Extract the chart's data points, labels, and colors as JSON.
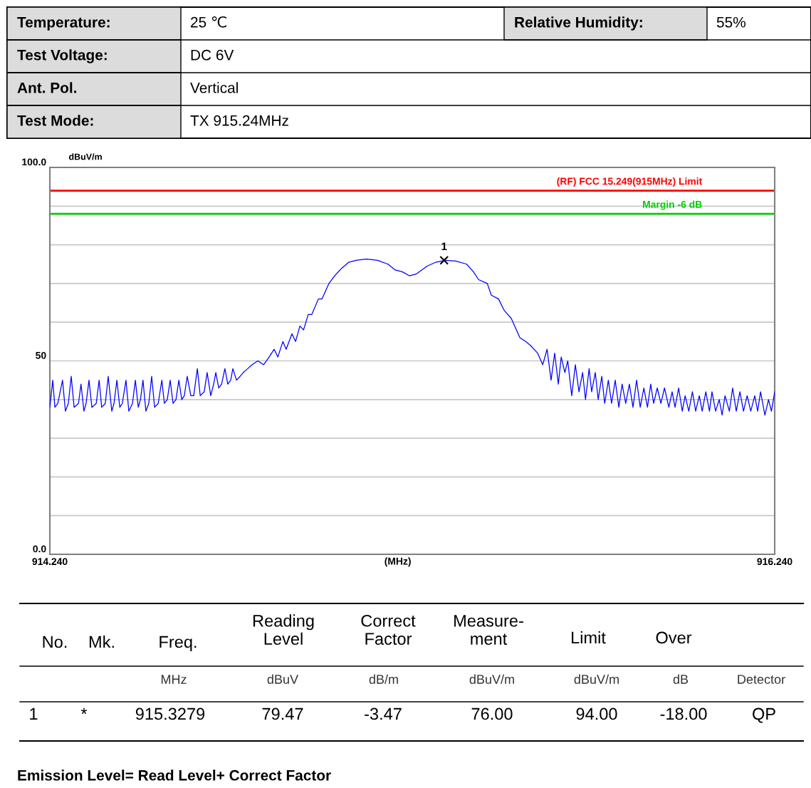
{
  "chart_data": {
    "type": "line",
    "ylabel": "dBuV/m",
    "xlabel": "(MHz)",
    "xlim": [
      914.24,
      916.24
    ],
    "ylim": [
      0,
      100
    ],
    "xticks": [
      {
        "value": 914.24,
        "label": "914.240"
      },
      {
        "value": 916.24,
        "label": "916.240"
      }
    ],
    "yticks": [
      {
        "value": 0,
        "label": "0.0"
      },
      {
        "value": 10,
        "label": null
      },
      {
        "value": 20,
        "label": null
      },
      {
        "value": 30,
        "label": null
      },
      {
        "value": 40,
        "label": null
      },
      50,
      {
        "value": 60,
        "label": null
      },
      {
        "value": 70,
        "label": null
      },
      {
        "value": 80,
        "label": null
      },
      {
        "value": 90,
        "label": null
      },
      {
        "value": 100,
        "label": "100.0"
      }
    ],
    "grid": "y",
    "ref_lines": [
      {
        "axis": "y",
        "value": 94,
        "label": "(RF) FCC 15.249(915MHz) Limit",
        "color": "#ff0000"
      },
      {
        "axis": "y",
        "value": 88,
        "label": "Margin -6 dB",
        "color": "#00d000"
      }
    ],
    "series": [
      {
        "color": "#0000ff",
        "marker": "none",
        "x": [
          914.24,
          914.248,
          914.254,
          914.262,
          914.275,
          914.283,
          914.291,
          914.299,
          914.307,
          914.319,
          914.326,
          914.334,
          914.34,
          914.348,
          914.356,
          914.368,
          914.376,
          914.383,
          914.393,
          914.401,
          914.411,
          914.417,
          914.425,
          914.433,
          914.44,
          914.45,
          914.458,
          914.468,
          914.476,
          914.484,
          914.49,
          914.497,
          914.505,
          914.513,
          914.521,
          914.529,
          914.539,
          914.549,
          914.556,
          914.564,
          914.572,
          914.58,
          914.588,
          914.596,
          914.604,
          914.611,
          914.619,
          914.629,
          914.637,
          914.647,
          914.655,
          914.666,
          914.674,
          914.684,
          914.692,
          914.698,
          914.706,
          914.714,
          914.723,
          914.731,
          914.739,
          914.745,
          914.755,
          914.765,
          914.774,
          914.786,
          914.798,
          914.814,
          914.83,
          914.845,
          914.859,
          914.869,
          914.883,
          914.892,
          914.908,
          914.918,
          914.93,
          914.94,
          914.953,
          914.963,
          914.981,
          914.991,
          915.01,
          915.026,
          915.046,
          915.065,
          915.085,
          915.114,
          915.144,
          915.173,
          915.193,
          915.213,
          915.232,
          915.252,
          915.281,
          915.305,
          915.331,
          915.36,
          915.39,
          915.409,
          915.423,
          915.447,
          915.458,
          915.478,
          915.494,
          915.513,
          915.537,
          915.553,
          915.566,
          915.586,
          915.6,
          915.612,
          915.623,
          915.633,
          915.643,
          915.651,
          915.661,
          915.669,
          915.68,
          915.69,
          915.7,
          915.71,
          915.718,
          915.728,
          915.735,
          915.745,
          915.753,
          915.763,
          915.771,
          915.781,
          915.79,
          915.8,
          915.81,
          915.819,
          915.829,
          915.839,
          915.849,
          915.859,
          915.869,
          915.879,
          915.889,
          915.898,
          915.906,
          915.916,
          915.926,
          915.936,
          915.948,
          915.957,
          915.965,
          915.975,
          915.985,
          915.993,
          916.003,
          916.013,
          916.022,
          916.032,
          916.04,
          916.05,
          916.06,
          916.067,
          916.077,
          916.087,
          916.095,
          916.103,
          916.115,
          916.124,
          916.134,
          916.144,
          916.154,
          916.164,
          916.174,
          916.185,
          916.193,
          916.201,
          916.213,
          916.223,
          916.231,
          916.24
        ],
        "values": [
          38,
          45,
          38,
          39,
          45,
          37,
          39,
          46,
          38,
          39,
          44,
          37,
          39,
          45,
          38,
          39,
          45,
          38,
          39,
          46,
          37,
          39,
          45,
          38,
          39,
          45,
          37,
          39,
          45,
          38,
          40,
          45,
          37,
          39,
          46,
          38,
          39,
          45,
          39,
          40,
          45,
          39,
          40,
          45,
          40,
          41,
          46,
          41,
          41,
          48,
          41,
          42,
          47,
          41,
          44,
          47,
          43,
          44,
          48,
          44,
          45,
          48,
          45,
          46,
          47,
          48,
          49,
          50,
          49,
          51,
          53,
          51,
          55,
          53,
          57,
          55,
          59,
          58,
          62,
          62,
          66,
          66,
          70,
          72,
          74,
          75.5,
          76,
          76.3,
          76,
          75,
          73.5,
          73,
          72,
          72.5,
          74.5,
          75.5,
          76,
          75.8,
          75,
          73,
          71,
          70,
          67,
          66,
          63,
          61,
          56,
          55,
          54,
          52,
          49,
          53,
          45,
          52,
          44,
          51,
          47,
          50,
          41,
          49,
          42,
          47,
          40,
          48,
          42,
          47,
          40,
          46,
          39,
          45,
          39,
          45,
          38,
          44,
          39,
          44,
          38,
          45,
          38,
          43,
          38,
          44,
          39,
          43,
          39,
          43,
          38,
          42,
          38,
          43,
          37,
          41,
          37,
          42,
          37,
          41,
          37,
          42,
          37,
          42,
          37,
          40,
          36,
          41,
          37,
          43,
          37,
          42,
          37,
          41,
          37,
          41,
          37,
          42,
          36,
          40,
          37,
          42
        ]
      },
      {
        "type": "scatter",
        "color": "#000000",
        "marker": "cross",
        "x": [
          915.3279
        ],
        "values": [
          76.0
        ]
      }
    ],
    "annotations": [
      {
        "text": "1",
        "x": 915.3279,
        "y": 76.0
      },
      "Temperature:",
      "25 ℃",
      "Relative Humidity:",
      "55%",
      "Test Voltage:",
      "DC 6V",
      "Ant. Pol.",
      "Vertical",
      "Test Mode:",
      "TX 915.24MHz",
      "No.",
      "Mk.",
      "Freq.",
      "Reading\nLevel",
      "Correct\nFactor",
      "Measure-\nment",
      "Limit",
      "Over",
      "MHz",
      "dBuV",
      "dB/m",
      "dBuV/m",
      "dBuV/m",
      "dB",
      "Detector",
      "1",
      "*",
      "915.3279",
      "79.47",
      "-3.47",
      "76.00",
      "94.00",
      "-18.00",
      "QP",
      "Emission Level= Read Level+ Correct Factor"
    ]
  }
}
